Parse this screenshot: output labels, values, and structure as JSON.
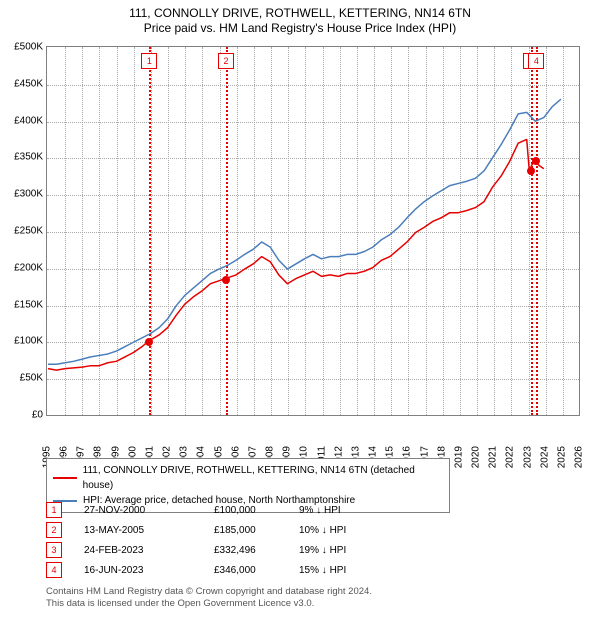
{
  "title": {
    "main": "111, CONNOLLY DRIVE, ROTHWELL, KETTERING, NN14 6TN",
    "sub": "Price paid vs. HM Land Registry's House Price Index (HPI)"
  },
  "chart": {
    "type": "line",
    "background_color": "#ffffff",
    "border_color": "#808080",
    "grid_color": "#aaaaaa",
    "x": {
      "min": 1995,
      "max": 2026,
      "tick_step": 1,
      "label_fontsize": 10,
      "rotation": -90
    },
    "y": {
      "min": 0,
      "max": 500000,
      "tick_step": 50000,
      "prefix": "£",
      "suffix": "K",
      "label_fontsize": 10
    },
    "series": [
      {
        "name": "property",
        "label": "111, CONNOLLY DRIVE, ROTHWELL, KETTERING, NN14 6TN (detached house)",
        "color": "#e60000",
        "line_width": 1.5,
        "points": [
          [
            1995.0,
            62000
          ],
          [
            1995.5,
            60000
          ],
          [
            1996.0,
            62000
          ],
          [
            1996.5,
            63000
          ],
          [
            1997.0,
            64000
          ],
          [
            1997.5,
            66000
          ],
          [
            1998.0,
            66000
          ],
          [
            1998.5,
            70000
          ],
          [
            1999.0,
            72000
          ],
          [
            1999.5,
            78000
          ],
          [
            2000.0,
            84000
          ],
          [
            2000.5,
            92000
          ],
          [
            2000.9,
            100000
          ],
          [
            2001.5,
            108000
          ],
          [
            2002.0,
            118000
          ],
          [
            2002.5,
            135000
          ],
          [
            2003.0,
            150000
          ],
          [
            2003.5,
            160000
          ],
          [
            2004.0,
            168000
          ],
          [
            2004.5,
            178000
          ],
          [
            2005.0,
            182000
          ],
          [
            2005.37,
            185000
          ],
          [
            2006.0,
            190000
          ],
          [
            2006.5,
            198000
          ],
          [
            2007.0,
            205000
          ],
          [
            2007.5,
            215000
          ],
          [
            2008.0,
            208000
          ],
          [
            2008.5,
            190000
          ],
          [
            2009.0,
            178000
          ],
          [
            2009.5,
            185000
          ],
          [
            2010.0,
            190000
          ],
          [
            2010.5,
            195000
          ],
          [
            2011.0,
            188000
          ],
          [
            2011.5,
            190000
          ],
          [
            2012.0,
            188000
          ],
          [
            2012.5,
            192000
          ],
          [
            2013.0,
            192000
          ],
          [
            2013.5,
            195000
          ],
          [
            2014.0,
            200000
          ],
          [
            2014.5,
            210000
          ],
          [
            2015.0,
            215000
          ],
          [
            2015.5,
            225000
          ],
          [
            2016.0,
            235000
          ],
          [
            2016.5,
            248000
          ],
          [
            2017.0,
            255000
          ],
          [
            2017.5,
            263000
          ],
          [
            2018.0,
            268000
          ],
          [
            2018.5,
            275000
          ],
          [
            2019.0,
            275000
          ],
          [
            2019.5,
            278000
          ],
          [
            2020.0,
            282000
          ],
          [
            2020.5,
            290000
          ],
          [
            2021.0,
            310000
          ],
          [
            2021.5,
            325000
          ],
          [
            2022.0,
            345000
          ],
          [
            2022.5,
            370000
          ],
          [
            2023.0,
            375000
          ],
          [
            2023.15,
            332496
          ],
          [
            2023.3,
            340000
          ],
          [
            2023.46,
            346000
          ],
          [
            2023.7,
            340000
          ],
          [
            2024.0,
            335000
          ]
        ]
      },
      {
        "name": "hpi",
        "label": "HPI: Average price, detached house, North Northamptonshire",
        "color": "#4a7ebb",
        "line_width": 1.5,
        "points": [
          [
            1995.0,
            68000
          ],
          [
            1995.5,
            68000
          ],
          [
            1996.0,
            70000
          ],
          [
            1996.5,
            72000
          ],
          [
            1997.0,
            75000
          ],
          [
            1997.5,
            78000
          ],
          [
            1998.0,
            80000
          ],
          [
            1998.5,
            82000
          ],
          [
            1999.0,
            86000
          ],
          [
            1999.5,
            92000
          ],
          [
            2000.0,
            98000
          ],
          [
            2000.5,
            104000
          ],
          [
            2001.0,
            110000
          ],
          [
            2001.5,
            118000
          ],
          [
            2002.0,
            130000
          ],
          [
            2002.5,
            148000
          ],
          [
            2003.0,
            162000
          ],
          [
            2003.5,
            172000
          ],
          [
            2004.0,
            182000
          ],
          [
            2004.5,
            192000
          ],
          [
            2005.0,
            198000
          ],
          [
            2005.5,
            203000
          ],
          [
            2006.0,
            210000
          ],
          [
            2006.5,
            218000
          ],
          [
            2007.0,
            225000
          ],
          [
            2007.5,
            235000
          ],
          [
            2008.0,
            228000
          ],
          [
            2008.5,
            210000
          ],
          [
            2009.0,
            198000
          ],
          [
            2009.5,
            205000
          ],
          [
            2010.0,
            212000
          ],
          [
            2010.5,
            218000
          ],
          [
            2011.0,
            212000
          ],
          [
            2011.5,
            215000
          ],
          [
            2012.0,
            215000
          ],
          [
            2012.5,
            218000
          ],
          [
            2013.0,
            218000
          ],
          [
            2013.5,
            222000
          ],
          [
            2014.0,
            228000
          ],
          [
            2014.5,
            238000
          ],
          [
            2015.0,
            245000
          ],
          [
            2015.5,
            255000
          ],
          [
            2016.0,
            268000
          ],
          [
            2016.5,
            280000
          ],
          [
            2017.0,
            290000
          ],
          [
            2017.5,
            298000
          ],
          [
            2018.0,
            305000
          ],
          [
            2018.5,
            312000
          ],
          [
            2019.0,
            315000
          ],
          [
            2019.5,
            318000
          ],
          [
            2020.0,
            322000
          ],
          [
            2020.5,
            332000
          ],
          [
            2021.0,
            350000
          ],
          [
            2021.5,
            368000
          ],
          [
            2022.0,
            388000
          ],
          [
            2022.5,
            410000
          ],
          [
            2023.0,
            412000
          ],
          [
            2023.5,
            400000
          ],
          [
            2024.0,
            405000
          ],
          [
            2024.5,
            420000
          ],
          [
            2025.0,
            430000
          ]
        ]
      }
    ],
    "events": [
      {
        "n": "1",
        "x": 2000.91,
        "date": "27-NOV-2000",
        "price": "£100,000",
        "diff": "9% ↓ HPI",
        "marker_y": 100000
      },
      {
        "n": "2",
        "x": 2005.37,
        "date": "13-MAY-2005",
        "price": "£185,000",
        "diff": "10% ↓ HPI",
        "marker_y": 185000
      },
      {
        "n": "3",
        "x": 2023.15,
        "date": "24-FEB-2023",
        "price": "£332,496",
        "diff": "19% ↓ HPI",
        "marker_y": 332496
      },
      {
        "n": "4",
        "x": 2023.46,
        "date": "16-JUN-2023",
        "price": "£346,000",
        "diff": "15% ↓ HPI",
        "marker_y": 346000
      }
    ],
    "event_line_color": "#e60000",
    "event_marker_border": "#e60000",
    "label_box_top_offset": 6
  },
  "footer": {
    "line1": "Contains HM Land Registry data © Crown copyright and database right 2024.",
    "line2": "This data is licensed under the Open Government Licence v3.0.",
    "color": "#555555"
  }
}
